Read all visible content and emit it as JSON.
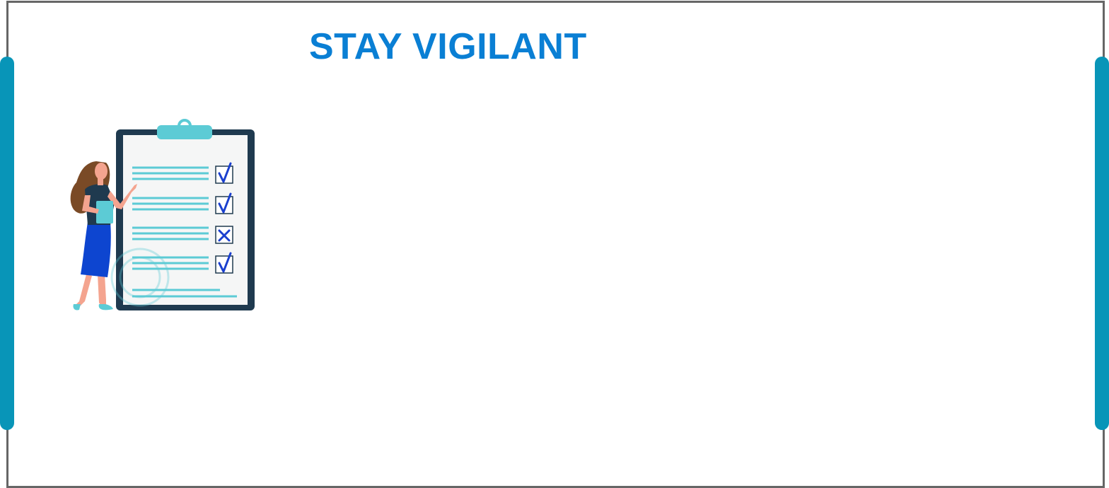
{
  "page": {
    "title": "STAY VIGILANT"
  },
  "colors": {
    "title": "#0a7fd4",
    "side_bar": "#0895b8",
    "frame_border": "#666666",
    "clipboard_board": "#1f3a4f",
    "clipboard_paper": "#f5f6f6",
    "clipboard_clip": "#5ccbd5",
    "text_lines": "#5ccbd5",
    "check_mark": "#1a3fcf",
    "skirt": "#0d45d0",
    "shirt": "#1f3a4f",
    "hair": "#7a4a26",
    "skin": "#f4a48f",
    "folder": "#5ccbd5"
  },
  "illustration": {
    "name": "woman-presenting-checklist",
    "checklist": [
      {
        "state": "checked",
        "icon": "check-icon"
      },
      {
        "state": "checked",
        "icon": "check-icon"
      },
      {
        "state": "crossed",
        "icon": "cross-icon"
      },
      {
        "state": "checked",
        "icon": "check-icon"
      }
    ]
  }
}
